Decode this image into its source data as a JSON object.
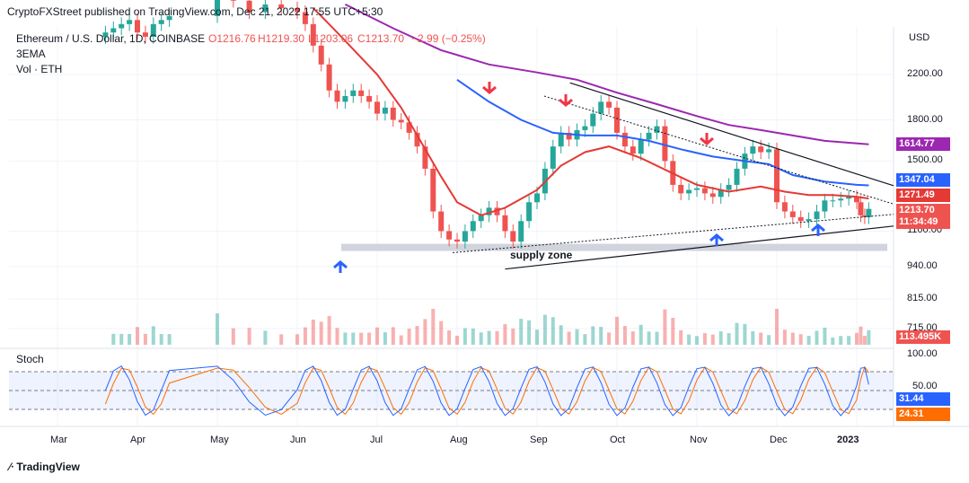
{
  "header": {
    "publisher": "CryptoFXStreet published on TradingView.com, Dec 21, 2022 17:55 UTC+5:30",
    "symbol": "Ethereum / U.S. Dollar, 1D, COINBASE",
    "open": "O1216.76",
    "high": "H1219.30",
    "low": "L1203.06",
    "close": "C1213.70",
    "change": "−2.99 (−0.25%)",
    "indicator1": "3EMA",
    "indicator2": "Vol · ETH",
    "currency": "USD"
  },
  "footer": {
    "brand": "TradingView"
  },
  "colors": {
    "up": "#26a69a",
    "down": "#ef5350",
    "ema_short": "#e53935",
    "ema_mid": "#2962ff",
    "ema_long": "#9c27b0",
    "stoch_k": "#2962ff",
    "stoch_d": "#ff6d00",
    "arrow_down": "#f23645",
    "arrow_up": "#2962ff",
    "supply_zone": "#d1d4dc"
  },
  "chart_data": {
    "type": "line",
    "price_axis": {
      "scale": "log",
      "ticks": [
        "2200.00",
        "1800.00",
        "1500.00",
        "1100.00",
        "940.00",
        "815.00",
        "715.00"
      ],
      "tick_values": [
        2200,
        1800,
        1500,
        1100,
        940,
        815,
        715
      ]
    },
    "time_axis": {
      "labels": [
        "Mar",
        "Apr",
        "May",
        "Jun",
        "Jul",
        "Aug",
        "Sep",
        "Oct",
        "Nov",
        "Dec",
        "2023"
      ]
    },
    "badges": [
      {
        "name": "ema-long-price",
        "value": "1614.77",
        "color": "#9c27b0"
      },
      {
        "name": "ema-mid-price",
        "value": "1347.04",
        "color": "#2962ff"
      },
      {
        "name": "ema-short-price",
        "value": "1271.49",
        "color": "#e53935"
      },
      {
        "name": "last-price",
        "value": "1213.70",
        "color": "#ef5350"
      },
      {
        "name": "countdown",
        "value": "11:34:49",
        "color": "#ef5350"
      },
      {
        "name": "volume-value",
        "value": "113.495K",
        "color": "#ef5350"
      },
      {
        "name": "stoch-k-value",
        "value": "31.44",
        "color": "#2962ff"
      },
      {
        "name": "stoch-d-value",
        "value": "24.31",
        "color": "#ff6d00"
      }
    ],
    "series": [
      {
        "name": "3EMA",
        "role": "short",
        "points": [
          [
            5.2,
            2950
          ],
          [
            5.3,
            2850
          ],
          [
            5.5,
            2650
          ],
          [
            6.0,
            2200
          ],
          [
            6.3,
            1900
          ],
          [
            6.8,
            1400
          ],
          [
            7.0,
            1250
          ],
          [
            7.3,
            1180
          ],
          [
            7.6,
            1220
          ],
          [
            8.0,
            1320
          ],
          [
            8.3,
            1470
          ],
          [
            8.6,
            1560
          ],
          [
            8.9,
            1600
          ],
          [
            9.3,
            1520
          ],
          [
            9.7,
            1420
          ],
          [
            10.0,
            1350
          ],
          [
            10.4,
            1310
          ],
          [
            10.8,
            1340
          ],
          [
            11.1,
            1310
          ],
          [
            11.4,
            1290
          ],
          [
            11.7,
            1290
          ],
          [
            12.0,
            1280
          ],
          [
            12.15,
            1271
          ]
        ]
      },
      {
        "name": "3EMA",
        "role": "mid",
        "points": [
          [
            7.0,
            2150
          ],
          [
            7.4,
            1950
          ],
          [
            7.8,
            1800
          ],
          [
            8.2,
            1700
          ],
          [
            8.6,
            1680
          ],
          [
            9.0,
            1680
          ],
          [
            9.4,
            1640
          ],
          [
            9.8,
            1580
          ],
          [
            10.2,
            1530
          ],
          [
            10.6,
            1500
          ],
          [
            10.9,
            1480
          ],
          [
            11.2,
            1410
          ],
          [
            11.6,
            1370
          ],
          [
            12.0,
            1350
          ],
          [
            12.15,
            1347
          ]
        ]
      },
      {
        "name": "3EMA",
        "role": "long",
        "points": [
          [
            5.6,
            3000
          ],
          [
            6.2,
            2700
          ],
          [
            6.8,
            2450
          ],
          [
            7.4,
            2300
          ],
          [
            8.0,
            2220
          ],
          [
            8.5,
            2150
          ],
          [
            9.0,
            2030
          ],
          [
            9.5,
            1930
          ],
          [
            10.0,
            1830
          ],
          [
            10.4,
            1760
          ],
          [
            10.8,
            1720
          ],
          [
            11.2,
            1680
          ],
          [
            11.6,
            1640
          ],
          [
            12.15,
            1614.77
          ]
        ]
      }
    ],
    "candles_closes": [
      [
        2.6,
        2650
      ],
      [
        2.7,
        2700
      ],
      [
        2.8,
        2750
      ],
      [
        2.9,
        2800
      ],
      [
        3.0,
        2650
      ],
      [
        3.1,
        2600
      ],
      [
        3.2,
        2750
      ],
      [
        3.3,
        2800
      ],
      [
        3.4,
        2850
      ],
      [
        4.0,
        3200
      ],
      [
        4.2,
        3050
      ],
      [
        4.4,
        2900
      ],
      [
        4.6,
        3000
      ],
      [
        4.8,
        2950
      ],
      [
        5.0,
        2900
      ],
      [
        5.1,
        2750
      ],
      [
        5.2,
        2500
      ],
      [
        5.3,
        2300
      ],
      [
        5.4,
        2050
      ],
      [
        5.5,
        1950
      ],
      [
        5.6,
        2000
      ],
      [
        5.7,
        2050
      ],
      [
        5.8,
        2000
      ],
      [
        5.9,
        1950
      ],
      [
        6.0,
        1850
      ],
      [
        6.1,
        1900
      ],
      [
        6.2,
        1800
      ],
      [
        6.3,
        1780
      ],
      [
        6.4,
        1700
      ],
      [
        6.5,
        1600
      ],
      [
        6.6,
        1450
      ],
      [
        6.7,
        1200
      ],
      [
        6.8,
        1100
      ],
      [
        6.9,
        1060
      ],
      [
        7.0,
        1050
      ],
      [
        7.1,
        1100
      ],
      [
        7.2,
        1150
      ],
      [
        7.3,
        1180
      ],
      [
        7.4,
        1220
      ],
      [
        7.5,
        1180
      ],
      [
        7.6,
        1100
      ],
      [
        7.7,
        1050
      ],
      [
        7.8,
        1150
      ],
      [
        7.9,
        1250
      ],
      [
        8.0,
        1300
      ],
      [
        8.1,
        1450
      ],
      [
        8.2,
        1600
      ],
      [
        8.3,
        1700
      ],
      [
        8.4,
        1650
      ],
      [
        8.5,
        1720
      ],
      [
        8.6,
        1750
      ],
      [
        8.7,
        1850
      ],
      [
        8.8,
        1950
      ],
      [
        8.9,
        1900
      ],
      [
        9.0,
        1700
      ],
      [
        9.1,
        1600
      ],
      [
        9.2,
        1550
      ],
      [
        9.3,
        1650
      ],
      [
        9.4,
        1700
      ],
      [
        9.5,
        1750
      ],
      [
        9.6,
        1500
      ],
      [
        9.7,
        1350
      ],
      [
        9.8,
        1300
      ],
      [
        9.9,
        1320
      ],
      [
        10.0,
        1330
      ],
      [
        10.1,
        1300
      ],
      [
        10.2,
        1280
      ],
      [
        10.3,
        1320
      ],
      [
        10.4,
        1350
      ],
      [
        10.5,
        1450
      ],
      [
        10.6,
        1550
      ],
      [
        10.7,
        1600
      ],
      [
        10.8,
        1560
      ],
      [
        10.9,
        1580
      ],
      [
        11.0,
        1250
      ],
      [
        11.1,
        1200
      ],
      [
        11.2,
        1170
      ],
      [
        11.3,
        1150
      ],
      [
        11.4,
        1160
      ],
      [
        11.5,
        1200
      ],
      [
        11.6,
        1260
      ],
      [
        11.7,
        1260
      ],
      [
        11.8,
        1270
      ],
      [
        11.9,
        1280
      ],
      [
        12.0,
        1250
      ],
      [
        12.05,
        1180
      ],
      [
        12.1,
        1170
      ],
      [
        12.15,
        1213.7
      ]
    ],
    "stochastic": {
      "name": "Stoch",
      "ticks": [
        "100.00",
        "50.00"
      ],
      "band": [
        20,
        80
      ],
      "k_last": 31.44,
      "d_last": 24.31
    },
    "annotations": [
      {
        "type": "label",
        "text": "supply zone"
      },
      {
        "type": "arrow-down",
        "count": 3
      },
      {
        "type": "arrow-up",
        "count": 3
      }
    ]
  }
}
